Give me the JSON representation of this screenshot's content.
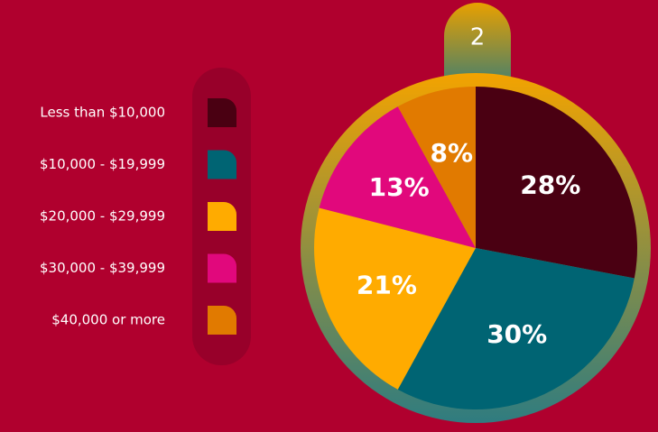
{
  "badge": "2",
  "chart_data": {
    "type": "pie",
    "categories": [
      "Less than $10,000",
      "$10,000 - $19,999",
      "$20,000 - $29,999",
      "$30,000 - $39,999",
      "$40,000 or more"
    ],
    "values": [
      28,
      30,
      21,
      13,
      8
    ],
    "value_labels": [
      "28%",
      "30%",
      "21%",
      "13%",
      "8%"
    ],
    "colors": [
      "#4a0012",
      "#006473",
      "#ffab00",
      "#e1087c",
      "#e17a00"
    ],
    "legend": "left"
  }
}
